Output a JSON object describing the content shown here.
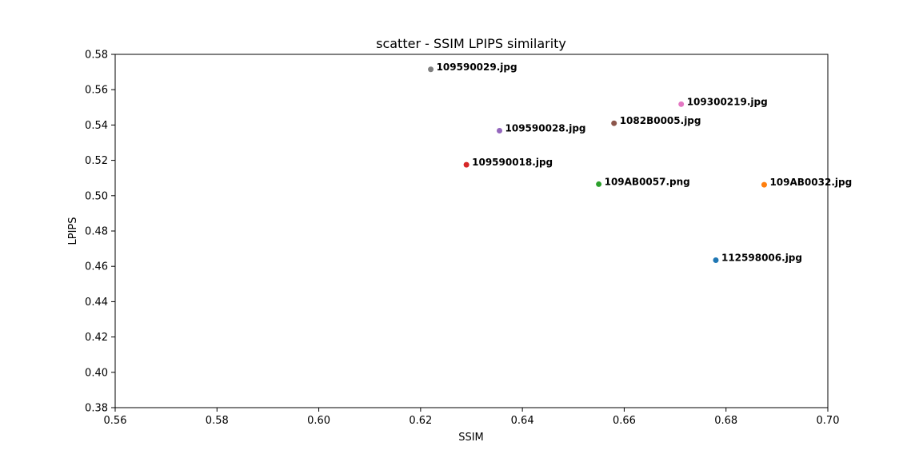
{
  "chart_data": {
    "type": "scatter",
    "title": "scatter - SSIM LPIPS similarity",
    "xlabel": "SSIM",
    "ylabel": "LPIPS",
    "xlim": [
      0.56,
      0.7
    ],
    "ylim": [
      0.38,
      0.58
    ],
    "xticks": [
      "0.56",
      "0.58",
      "0.60",
      "0.62",
      "0.64",
      "0.66",
      "0.68",
      "0.70"
    ],
    "yticks": [
      "0.38",
      "0.40",
      "0.42",
      "0.44",
      "0.46",
      "0.48",
      "0.50",
      "0.52",
      "0.54",
      "0.56",
      "0.58"
    ],
    "grid": false,
    "points": [
      {
        "label": "112598006.jpg",
        "x": 0.678,
        "y": 0.4635,
        "color": "#1f77b4"
      },
      {
        "label": "109AB0032.jpg",
        "x": 0.6875,
        "y": 0.5062,
        "color": "#ff7f0e"
      },
      {
        "label": "109AB0057.png",
        "x": 0.655,
        "y": 0.5065,
        "color": "#2ca02c"
      },
      {
        "label": "109590018.jpg",
        "x": 0.629,
        "y": 0.5175,
        "color": "#d62728"
      },
      {
        "label": "109590028.jpg",
        "x": 0.6355,
        "y": 0.5368,
        "color": "#9467bd"
      },
      {
        "label": "1082B0005.jpg",
        "x": 0.658,
        "y": 0.541,
        "color": "#8c564b"
      },
      {
        "label": "109300219.jpg",
        "x": 0.6712,
        "y": 0.5518,
        "color": "#e377c2"
      },
      {
        "label": "109590029.jpg",
        "x": 0.622,
        "y": 0.5715,
        "color": "#7f7f7f"
      }
    ]
  }
}
